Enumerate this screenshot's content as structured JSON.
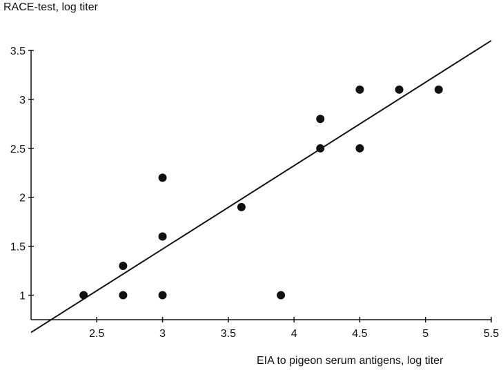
{
  "chart_data": {
    "type": "scatter",
    "title": "",
    "ylabel": "RACE-test, log titer",
    "xlabel": "EIA to pigeon serum antigens, log titer",
    "xlim": [
      2.0,
      5.5
    ],
    "ylim": [
      0.75,
      3.5
    ],
    "xticks": [
      2.5,
      3,
      3.5,
      4,
      4.5,
      5,
      5.5
    ],
    "yticks": [
      1,
      1.5,
      2,
      2.5,
      3,
      3.5
    ],
    "x_tick_labels": [
      "2.5",
      "3",
      "3.5",
      "4",
      "4.5",
      "5",
      "5.5"
    ],
    "y_tick_labels": [
      "1",
      "1.5",
      "2",
      "2.5",
      "3",
      "3.5"
    ],
    "grid": false,
    "points": [
      {
        "x": 2.4,
        "y": 1.0
      },
      {
        "x": 2.7,
        "y": 1.3
      },
      {
        "x": 2.7,
        "y": 1.0
      },
      {
        "x": 3.0,
        "y": 2.2
      },
      {
        "x": 3.0,
        "y": 1.6
      },
      {
        "x": 3.0,
        "y": 1.0
      },
      {
        "x": 3.6,
        "y": 1.9
      },
      {
        "x": 3.9,
        "y": 1.0
      },
      {
        "x": 4.2,
        "y": 2.8
      },
      {
        "x": 4.2,
        "y": 2.5
      },
      {
        "x": 4.5,
        "y": 3.1
      },
      {
        "x": 4.5,
        "y": 2.5
      },
      {
        "x": 4.8,
        "y": 3.1
      },
      {
        "x": 5.1,
        "y": 3.1
      }
    ],
    "regression_line": {
      "x": [
        2.0,
        5.5
      ],
      "y": [
        0.62,
        3.6
      ]
    }
  }
}
